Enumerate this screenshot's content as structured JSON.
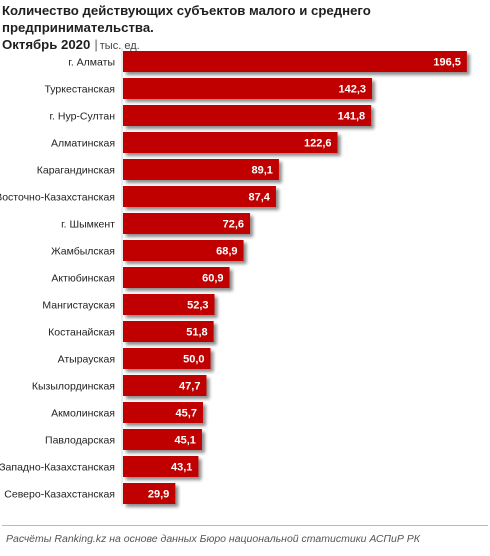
{
  "title": {
    "line1": "Количество действующих субъектов малого и среднего предпринимательства.",
    "line2": "Октябрь 2020",
    "separator": "|",
    "unit": "тыс. ед."
  },
  "source": "Расчёты Ranking.kz на основе данных Бюро национальной  статистики АСПиР РК",
  "colors": {
    "bar": "#c00000",
    "bar_shadow": "#9a9a9a",
    "value_text": "#ffffff"
  },
  "chart_data": {
    "type": "bar",
    "orientation": "horizontal",
    "categories": [
      "г. Алматы",
      "Туркестанская",
      "г. Нур-Султан",
      "Алматинская",
      "Карагандинская",
      "Восточно-Казахстанская",
      "г. Шымкент",
      "Жамбылская",
      "Актюбинская",
      "Мангистауская",
      "Костанайская",
      "Атырауская",
      "Кызылординская",
      "Акмолинская",
      "Павлодарская",
      "Западно-Казахстанская",
      "Северо-Казахстанская"
    ],
    "values": [
      196.5,
      142.3,
      141.8,
      122.6,
      89.1,
      87.4,
      72.6,
      68.9,
      60.9,
      52.3,
      51.8,
      50.0,
      47.7,
      45.7,
      45.1,
      43.1,
      29.9
    ],
    "value_labels": [
      "196,5",
      "142,3",
      "141,8",
      "122,6",
      "89,1",
      "87,4",
      "72,6",
      "68,9",
      "60,9",
      "52,3",
      "51,8",
      "50,0",
      "47,7",
      "45,7",
      "45,1",
      "43,1",
      "29,9"
    ],
    "xlim": [
      0,
      200
    ],
    "grid": false,
    "legend": "none"
  }
}
